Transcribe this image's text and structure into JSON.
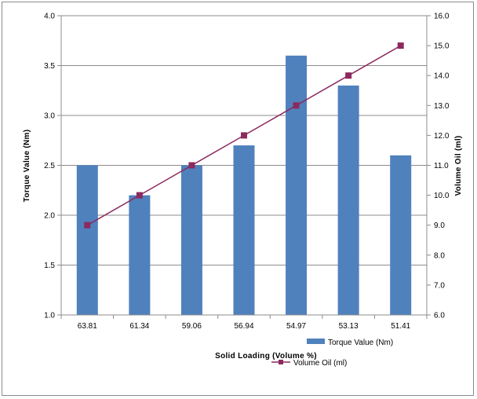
{
  "chart_data": {
    "type": "bar",
    "categories": [
      "63.81",
      "61.34",
      "59.06",
      "56.94",
      "54.97",
      "53.13",
      "51.41"
    ],
    "series": [
      {
        "name": "Torque Value (Nm)",
        "type": "bar",
        "axis": "left",
        "values": [
          2.5,
          2.2,
          2.5,
          2.7,
          3.6,
          3.3,
          2.6
        ],
        "color": "#4f81bd"
      },
      {
        "name": "Volume Oil (ml)",
        "type": "line",
        "axis": "right",
        "values": [
          9.0,
          10.0,
          11.0,
          12.0,
          13.0,
          14.0,
          15.0
        ],
        "color": "#8b2a5e"
      }
    ],
    "xlabel": "Solid Loading (Volume %)",
    "ylabel": "Torque Value (Nm)",
    "y2label": "Volume Oil (ml)",
    "ylim": [
      1.0,
      4.0
    ],
    "y2lim": [
      6.0,
      16.0
    ],
    "yticks": [
      "1.0",
      "1.5",
      "2.0",
      "2.5",
      "3.0",
      "3.5",
      "4.0"
    ],
    "y2ticks": [
      "6.0",
      "7.0",
      "8.0",
      "9.0",
      "10.0",
      "11.0",
      "12.0",
      "13.0",
      "14.0",
      "15.0",
      "16.0"
    ],
    "grid": true,
    "legend_position": "bottom-right"
  }
}
